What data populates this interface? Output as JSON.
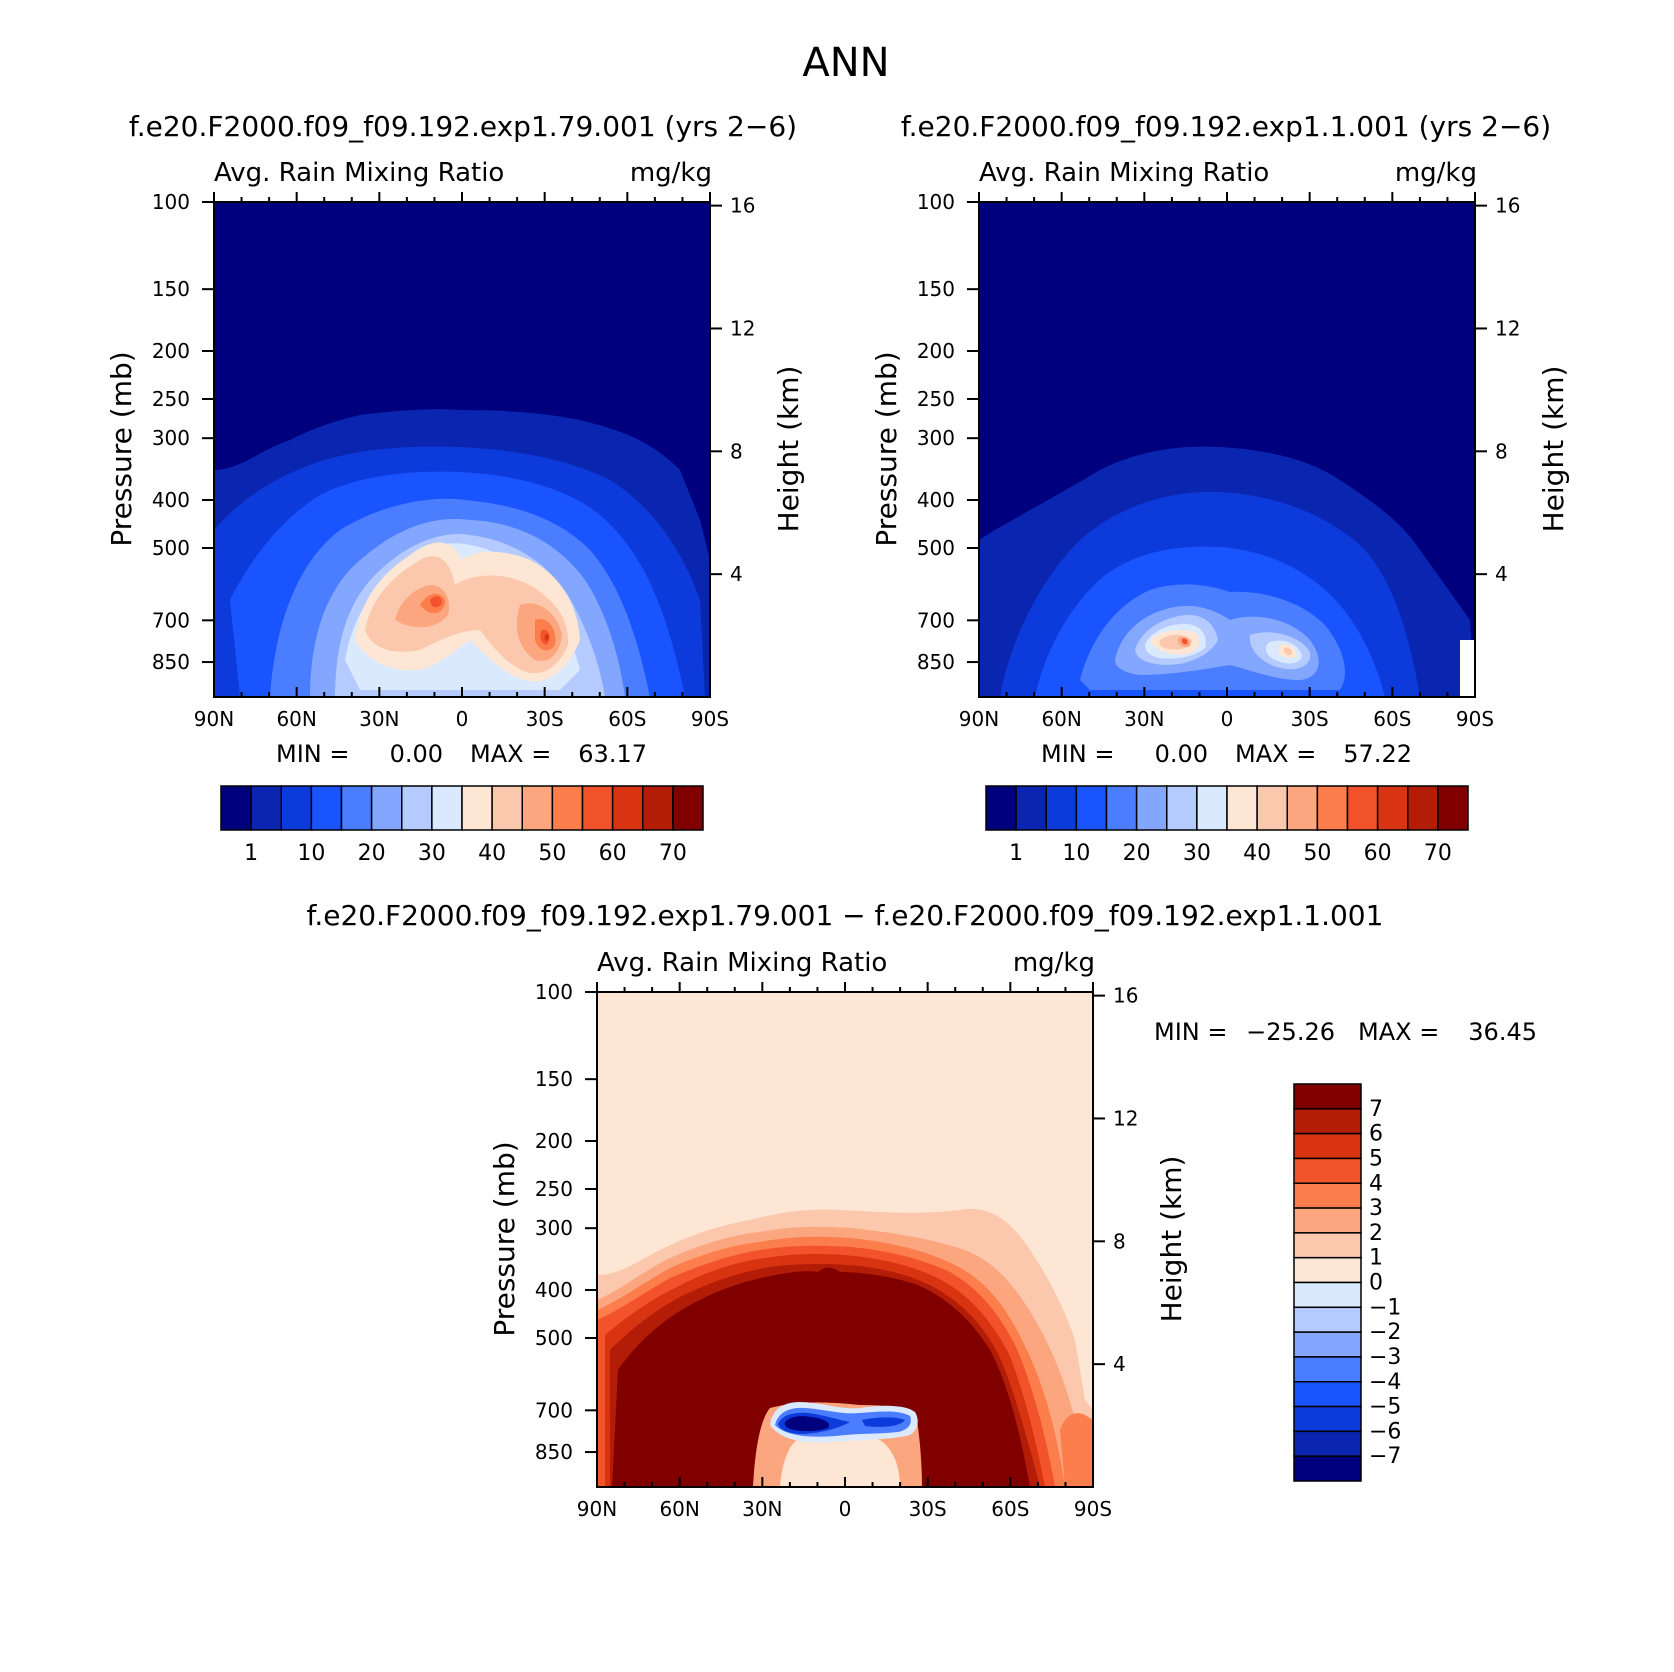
{
  "main_title": "ANN",
  "stats_prefix": {
    "min": "MIN =",
    "max": "MAX ="
  },
  "chart_data": [
    {
      "type": "heatmap",
      "title": "f.e20.F2000.f09_f09.192.exp1.79.001 (yrs 2−6)",
      "subtitle_left": "Avg. Rain Mixing Ratio",
      "subtitle_right": "mg/kg",
      "ylabel": "Pressure (mb)",
      "ylabel_right": "Height (km)",
      "x_ticks": [
        "90N",
        "60N",
        "30N",
        "0",
        "30S",
        "60S",
        "90S"
      ],
      "y_ticks": [
        100,
        150,
        200,
        250,
        300,
        400,
        500,
        700,
        850
      ],
      "y_ticks_right": [
        16,
        12,
        8,
        4
      ],
      "min_value": "0.00",
      "max_value": "63.17",
      "colorbar": {
        "orientation": "horizontal",
        "labels": [
          "1",
          "10",
          "20",
          "30",
          "40",
          "50",
          "60",
          "70"
        ],
        "colors": [
          "#00007f",
          "#0a26b0",
          "#0d3bdb",
          "#1a54ff",
          "#4a7dff",
          "#83a6ff",
          "#b5cbff",
          "#dbe9ff",
          "#fde6d4",
          "#fbc8ad",
          "#fba67f",
          "#fb7e4c",
          "#f2532a",
          "#d93412",
          "#b31c07",
          "#800000"
        ]
      }
    },
    {
      "type": "heatmap",
      "title": "f.e20.F2000.f09_f09.192.exp1.1.001 (yrs 2−6)",
      "subtitle_left": "Avg. Rain Mixing Ratio",
      "subtitle_right": "mg/kg",
      "ylabel": "Pressure (mb)",
      "ylabel_right": "Height (km)",
      "x_ticks": [
        "90N",
        "60N",
        "30N",
        "0",
        "30S",
        "60S",
        "90S"
      ],
      "y_ticks": [
        100,
        150,
        200,
        250,
        300,
        400,
        500,
        700,
        850
      ],
      "y_ticks_right": [
        16,
        12,
        8,
        4
      ],
      "min_value": "0.00",
      "max_value": "57.22",
      "colorbar": {
        "orientation": "horizontal",
        "labels": [
          "1",
          "10",
          "20",
          "30",
          "40",
          "50",
          "60",
          "70"
        ],
        "colors": [
          "#00007f",
          "#0a26b0",
          "#0d3bdb",
          "#1a54ff",
          "#4a7dff",
          "#83a6ff",
          "#b5cbff",
          "#dbe9ff",
          "#fde6d4",
          "#fbc8ad",
          "#fba67f",
          "#fb7e4c",
          "#f2532a",
          "#d93412",
          "#b31c07",
          "#800000"
        ]
      }
    },
    {
      "type": "heatmap",
      "title": "f.e20.F2000.f09_f09.192.exp1.79.001 − f.e20.F2000.f09_f09.192.exp1.1.001",
      "subtitle_left": "Avg. Rain Mixing Ratio",
      "subtitle_right": "mg/kg",
      "ylabel": "Pressure (mb)",
      "ylabel_right": "Height (km)",
      "x_ticks": [
        "90N",
        "60N",
        "30N",
        "0",
        "30S",
        "60S",
        "90S"
      ],
      "y_ticks": [
        100,
        150,
        200,
        250,
        300,
        400,
        500,
        700,
        850
      ],
      "y_ticks_right": [
        16,
        12,
        8,
        4
      ],
      "min_value": "−25.26",
      "max_value": "36.45",
      "colorbar": {
        "orientation": "vertical",
        "labels": [
          "7",
          "6",
          "5",
          "4",
          "3",
          "2",
          "1",
          "0",
          "−1",
          "−2",
          "−3",
          "−4",
          "−5",
          "−6",
          "−7"
        ],
        "colors_top_to_bottom": [
          "#800000",
          "#b31c07",
          "#d93412",
          "#f2532a",
          "#fb7e4c",
          "#fba67f",
          "#fbc8ad",
          "#fde6d4",
          "#dbe9ff",
          "#b5cbff",
          "#83a6ff",
          "#4a7dff",
          "#1a54ff",
          "#0d3bdb",
          "#0a26b0",
          "#00007f"
        ]
      }
    }
  ]
}
